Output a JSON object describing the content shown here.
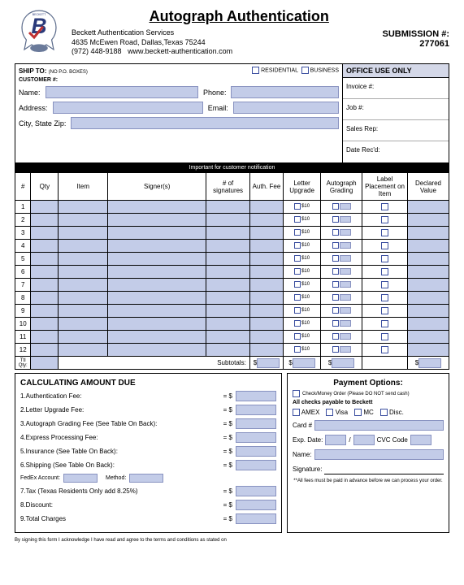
{
  "header": {
    "title": "Autograph Authentication",
    "company": "Beckett Authentication Services",
    "address": "4635 McEwen Road, Dallas,Texas 75244",
    "phone": "(972) 448-9188",
    "website": "www.beckett-authentication.com",
    "submission_label": "SUBMISSION #:",
    "submission_num": "277061"
  },
  "shipTo": {
    "title": "SHIP TO:",
    "noPoBoxes": "(NO P.O. BOXES)",
    "customerLabel": "CUSTOMER #:",
    "residential": "RESIDENTIAL",
    "business": "BUSINESS",
    "nameLabel": "Name:",
    "phoneLabel": "Phone:",
    "addressLabel": "Address:",
    "emailLabel": "Email:",
    "cityLabel": "City, State Zip:"
  },
  "officeUse": {
    "header": "OFFICE USE ONLY",
    "invoice": "Invoice #:",
    "job": "Job #:",
    "salesRep": "Sales Rep:",
    "dateRecd": "Date Rec'd:"
  },
  "blackBar": "Important for customer notification",
  "columns": {
    "num": "#",
    "qty": "Qty",
    "item": "Item",
    "signers": "Signer(s)",
    "sigs": "# of signatures",
    "fee": "Auth. Fee",
    "letter": "Letter Upgrade",
    "grading": "Autograph Grading",
    "label": "Label Placement on Item",
    "value": "Declared Value"
  },
  "rows": [
    "1",
    "2",
    "3",
    "4",
    "5",
    "6",
    "7",
    "8",
    "9",
    "10",
    "11",
    "12"
  ],
  "ttlQty": "Ttl Qty:",
  "subtotals": "Subtotals:",
  "price10": "$10",
  "calc": {
    "title": "CALCULATING AMOUNT DUE",
    "lines": [
      "1.Authentication Fee:",
      "2.Letter Upgrade Fee:",
      "3.Autograph Grading Fee (See Table On Back):",
      "4.Express Processing Fee:",
      "5.Insurance (See Table On Back):",
      "6.Shipping (See Table On Back):",
      "7.Tax (Texas Residents Only add 8.25%)",
      "8.Discount:",
      "9.Total Charges"
    ],
    "fedex": "FedEx Account:",
    "method": "Method:"
  },
  "payment": {
    "title": "Payment Options:",
    "checkNote": "Check/Money Order (Please DO NOT send cash)",
    "payable": "All checks payable to Beckett",
    "amex": "AMEX",
    "visa": "Visa",
    "mc": "MC",
    "disc": "Disc.",
    "cardLabel": "Card #",
    "expLabel": "Exp. Date:",
    "cvcLabel": "CVC Code",
    "nameLabel": "Name:",
    "sigLabel": "Signature:",
    "footer": "**All fees must be paid in advance before we can process your order."
  },
  "signNote": "By signing this form I acknowledge I have read and agree to the terms and conditions as stated on",
  "dollar": "$",
  "eq": "= $",
  "slash": "/"
}
